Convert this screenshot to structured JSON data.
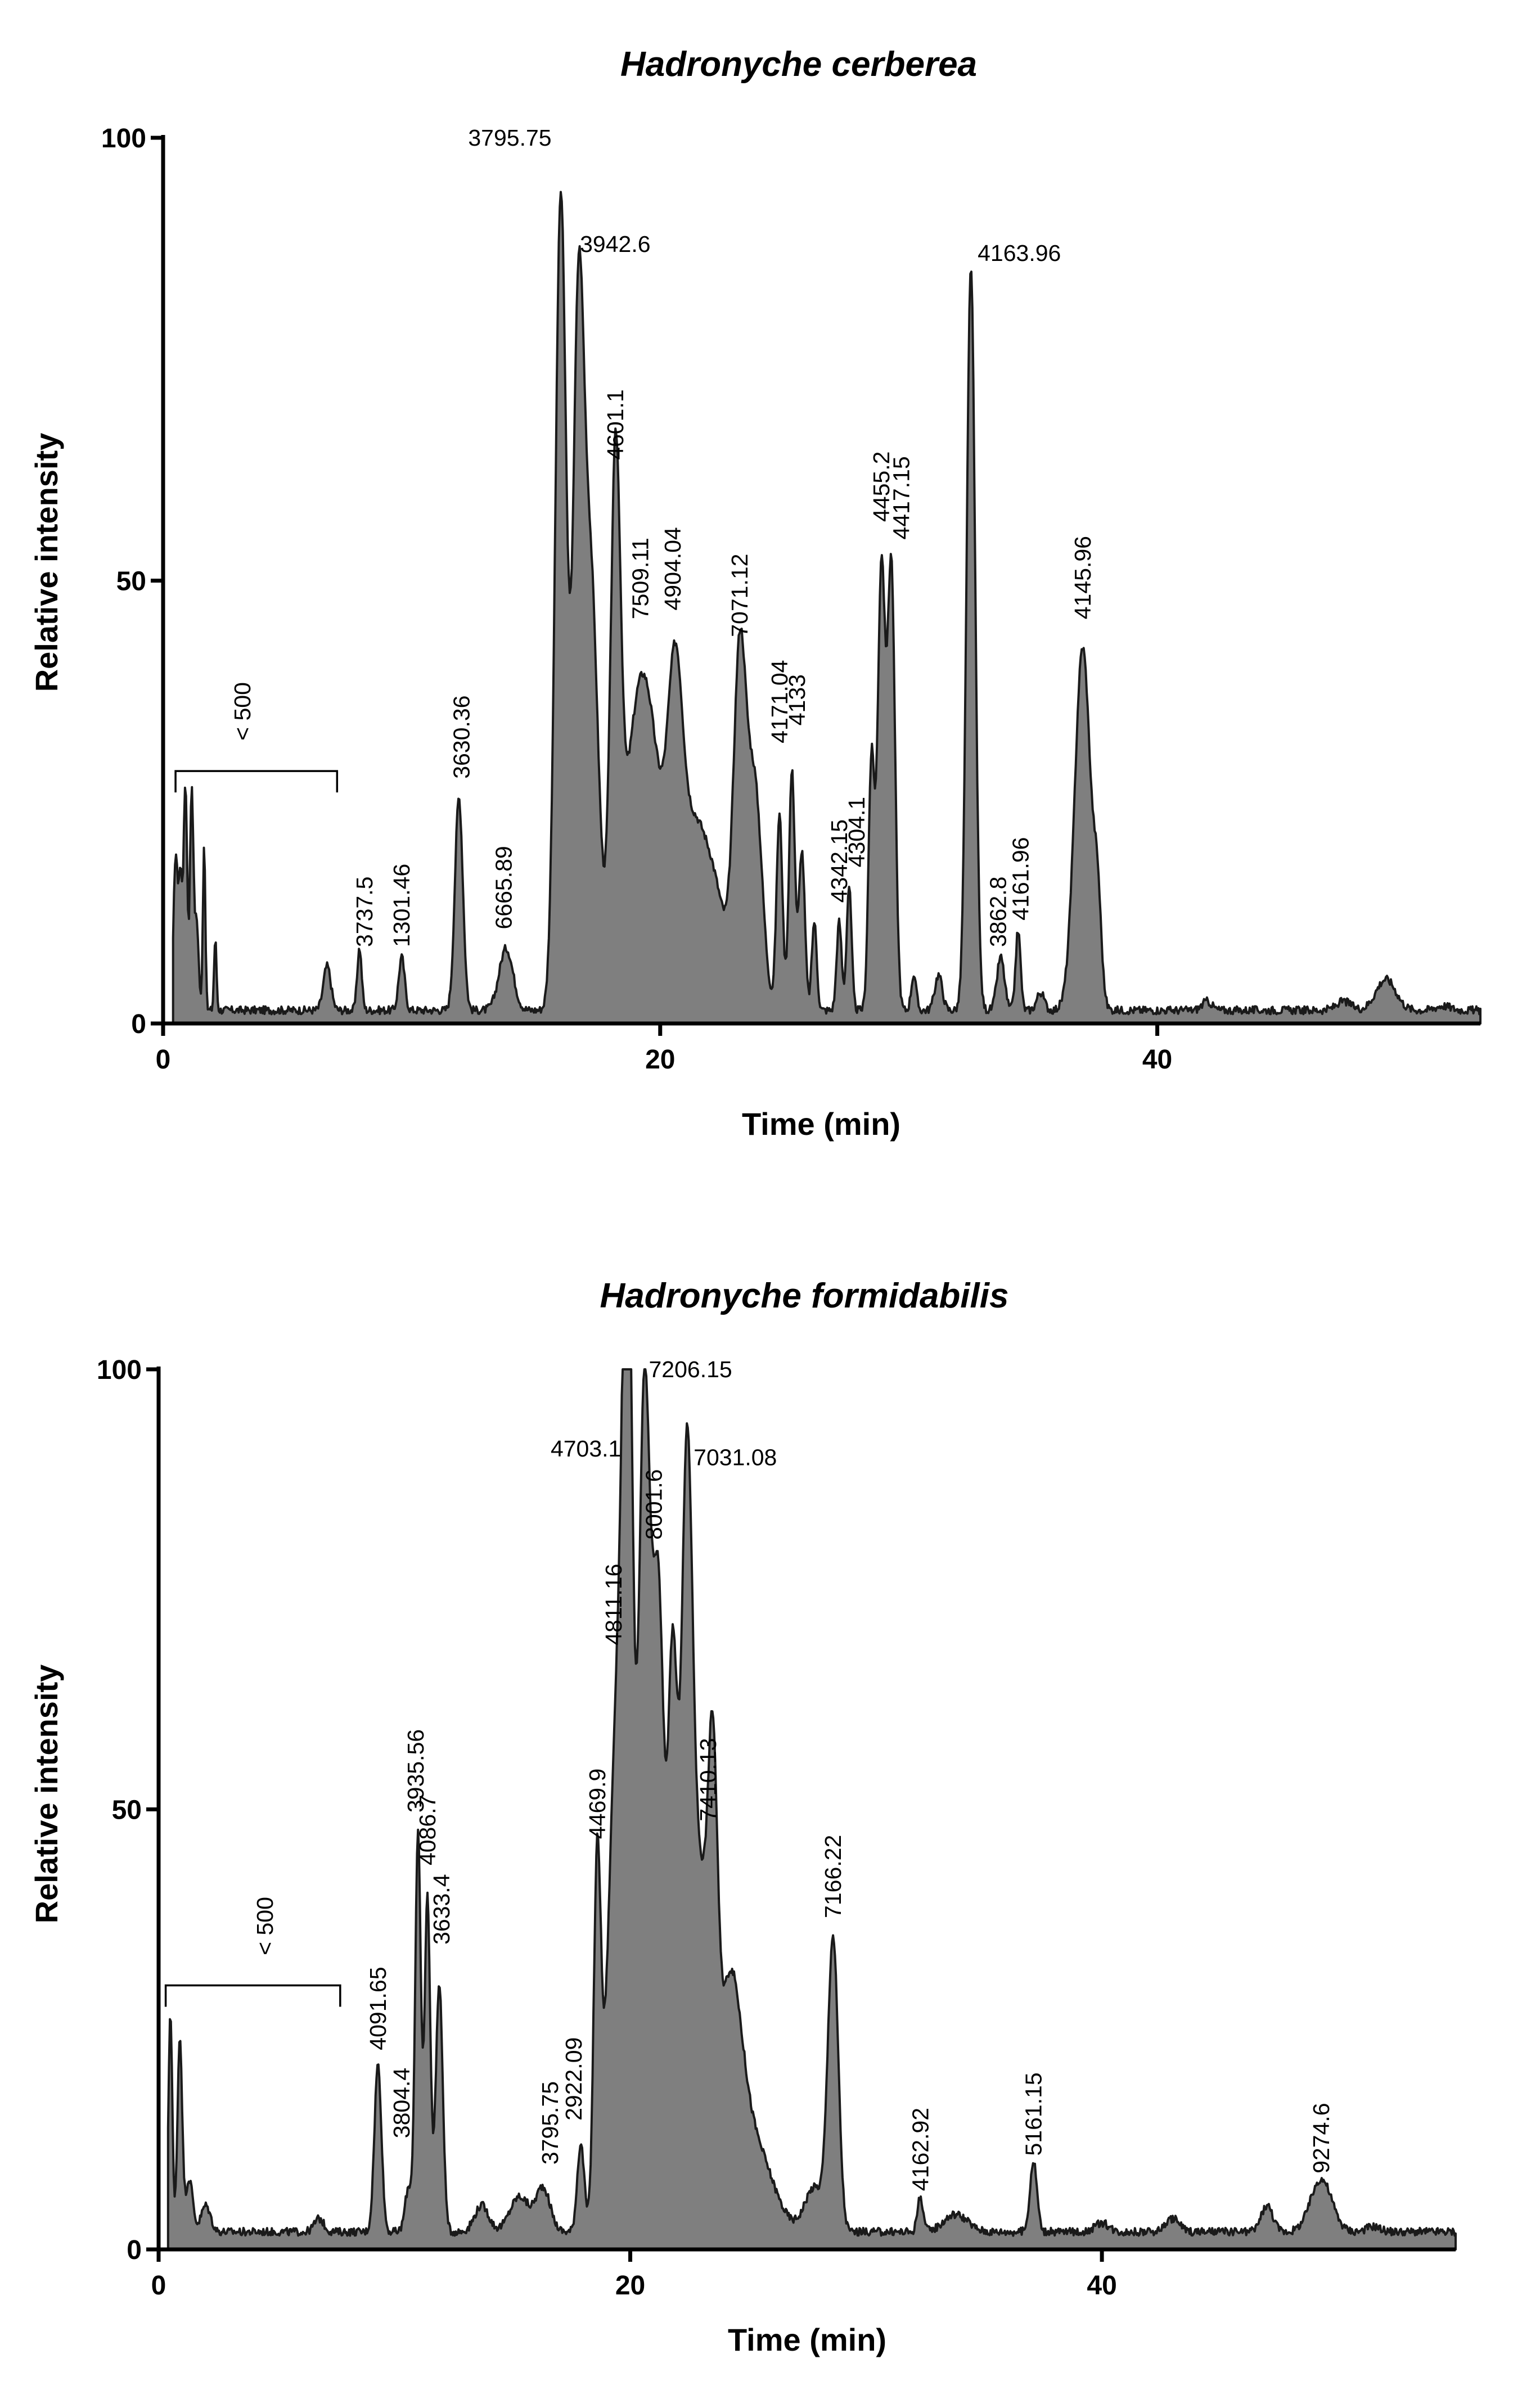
{
  "colors": {
    "fill": "#7f7f7f",
    "line": "#1a1a1a",
    "axis": "#000000"
  },
  "chart_data": [
    {
      "type": "area",
      "title": "Hadronyche cerberea",
      "xlabel": "Time (min)",
      "ylabel": "Relative intensity",
      "xlim": [
        0,
        53
      ],
      "ylim": [
        0,
        100
      ],
      "xticks": [
        0,
        20,
        40
      ],
      "yticks": [
        0,
        50,
        100
      ],
      "bracket": {
        "label": "< 500",
        "x_range": [
          0.5,
          7
        ]
      },
      "baseline": 1.5,
      "peaks": [
        {
          "x": 0.5,
          "y": 17,
          "w": 0.08
        },
        {
          "x": 0.7,
          "y": 15,
          "w": 0.08
        },
        {
          "x": 0.9,
          "y": 25,
          "w": 0.07
        },
        {
          "x": 1.15,
          "y": 25,
          "w": 0.07
        },
        {
          "x": 1.35,
          "y": 10,
          "w": 0.08
        },
        {
          "x": 1.65,
          "y": 19,
          "w": 0.05
        },
        {
          "x": 2.1,
          "y": 8,
          "w": 0.05
        },
        {
          "x": 6.6,
          "y": 5,
          "w": 0.15
        },
        {
          "x": 7.9,
          "y": 7,
          "w": 0.09
        },
        {
          "x": 9.6,
          "y": 6,
          "w": 0.12
        },
        {
          "x": 11.9,
          "y": 24,
          "w": 0.16
        },
        {
          "x": 13.8,
          "y": 7,
          "w": 0.28
        },
        {
          "x": 16.0,
          "y": 92,
          "w": 0.22
        },
        {
          "x": 16.7,
          "y": 72,
          "w": 0.22
        },
        {
          "x": 17.2,
          "y": 48,
          "w": 0.3
        },
        {
          "x": 18.2,
          "y": 54,
          "w": 0.2
        },
        {
          "x": 19.3,
          "y": 38,
          "w": 0.7
        },
        {
          "x": 20.6,
          "y": 28,
          "w": 0.3
        },
        {
          "x": 21.3,
          "y": 18,
          "w": 0.5
        },
        {
          "x": 22.2,
          "y": 12,
          "w": 0.5
        },
        {
          "x": 23.2,
          "y": 38,
          "w": 0.25
        },
        {
          "x": 23.8,
          "y": 25,
          "w": 0.3
        },
        {
          "x": 24.8,
          "y": 22,
          "w": 0.12
        },
        {
          "x": 25.3,
          "y": 27,
          "w": 0.12
        },
        {
          "x": 25.7,
          "y": 18,
          "w": 0.12
        },
        {
          "x": 26.2,
          "y": 10,
          "w": 0.1
        },
        {
          "x": 27.2,
          "y": 10,
          "w": 0.1
        },
        {
          "x": 27.6,
          "y": 14,
          "w": 0.1
        },
        {
          "x": 28.5,
          "y": 28,
          "w": 0.12
        },
        {
          "x": 28.9,
          "y": 50,
          "w": 0.15
        },
        {
          "x": 29.3,
          "y": 50,
          "w": 0.15
        },
        {
          "x": 30.2,
          "y": 4,
          "w": 0.1
        },
        {
          "x": 31.2,
          "y": 4,
          "w": 0.15
        },
        {
          "x": 32.5,
          "y": 84,
          "w": 0.17
        },
        {
          "x": 33.7,
          "y": 6,
          "w": 0.15
        },
        {
          "x": 34.4,
          "y": 9,
          "w": 0.1
        },
        {
          "x": 35.3,
          "y": 2,
          "w": 0.15
        },
        {
          "x": 37.0,
          "y": 41,
          "w": 0.32
        },
        {
          "x": 37.6,
          "y": 10,
          "w": 0.15
        },
        {
          "x": 42.0,
          "y": 1,
          "w": 0.2
        },
        {
          "x": 47.5,
          "y": 1,
          "w": 0.3
        },
        {
          "x": 49.2,
          "y": 3.5,
          "w": 0.4
        },
        {
          "x": 51.5,
          "y": 0.5,
          "w": 0.3
        }
      ],
      "peak_labels": [
        {
          "text": "3795.75",
          "x": 15.9,
          "y": 100
        },
        {
          "text": "3942.6",
          "x": 16.5,
          "y": 88
        },
        {
          "text": "4601.1",
          "x": 18.2,
          "y": 63
        },
        {
          "text": "7509.11",
          "x": 19.2,
          "y": 45
        },
        {
          "text": "4904.04",
          "x": 20.5,
          "y": 46
        },
        {
          "text": "7071.12",
          "x": 23.2,
          "y": 43
        },
        {
          "text": "4171.04",
          "x": 24.8,
          "y": 31
        },
        {
          "text": "4133",
          "x": 25.5,
          "y": 33
        },
        {
          "text": "4342.15",
          "x": 27.2,
          "y": 13
        },
        {
          "text": "4304.1",
          "x": 27.9,
          "y": 17
        },
        {
          "text": "4455.2",
          "x": 28.9,
          "y": 56
        },
        {
          "text": "4417.15",
          "x": 29.7,
          "y": 54
        },
        {
          "text": "4163.96",
          "x": 32.5,
          "y": 87
        },
        {
          "text": "3862.8",
          "x": 33.6,
          "y": 8
        },
        {
          "text": "4161.96",
          "x": 34.5,
          "y": 11
        },
        {
          "text": "4145.96",
          "x": 37.0,
          "y": 45
        },
        {
          "text": "3737.5",
          "x": 8.1,
          "y": 8
        },
        {
          "text": "1301.46",
          "x": 9.6,
          "y": 8
        },
        {
          "text": "3630.36",
          "x": 12.0,
          "y": 27
        },
        {
          "text": "6665.89",
          "x": 13.7,
          "y": 10
        }
      ]
    },
    {
      "type": "area",
      "title": "Hadronyche formidabilis",
      "xlabel": "Time (min)",
      "ylabel": "Relative intensity",
      "xlim": [
        0,
        55
      ],
      "ylim": [
        0,
        100
      ],
      "xticks": [
        0,
        20,
        40
      ],
      "yticks": [
        0,
        50,
        100
      ],
      "bracket": {
        "label": "< 500",
        "x_range": [
          0.3,
          7.7
        ]
      },
      "baseline": 2,
      "peaks": [
        {
          "x": 0.5,
          "y": 25,
          "w": 0.08
        },
        {
          "x": 0.9,
          "y": 22,
          "w": 0.1
        },
        {
          "x": 1.3,
          "y": 6,
          "w": 0.15
        },
        {
          "x": 2.0,
          "y": 3,
          "w": 0.2
        },
        {
          "x": 6.8,
          "y": 1.5,
          "w": 0.2
        },
        {
          "x": 9.3,
          "y": 19,
          "w": 0.15
        },
        {
          "x": 10.6,
          "y": 5,
          "w": 0.15
        },
        {
          "x": 11.0,
          "y": 45,
          "w": 0.12
        },
        {
          "x": 11.4,
          "y": 38,
          "w": 0.12
        },
        {
          "x": 11.9,
          "y": 28,
          "w": 0.15
        },
        {
          "x": 13.7,
          "y": 3,
          "w": 0.3
        },
        {
          "x": 15.3,
          "y": 4,
          "w": 0.4
        },
        {
          "x": 16.3,
          "y": 5,
          "w": 0.3
        },
        {
          "x": 17.9,
          "y": 10,
          "w": 0.15
        },
        {
          "x": 18.6,
          "y": 40,
          "w": 0.15
        },
        {
          "x": 19.5,
          "y": 62,
          "w": 0.4
        },
        {
          "x": 19.9,
          "y": 85,
          "w": 0.2
        },
        {
          "x": 20.6,
          "y": 93,
          "w": 0.25
        },
        {
          "x": 21.2,
          "y": 70,
          "w": 0.25
        },
        {
          "x": 21.8,
          "y": 60,
          "w": 0.2
        },
        {
          "x": 22.4,
          "y": 86,
          "w": 0.25
        },
        {
          "x": 23.0,
          "y": 35,
          "w": 0.3
        },
        {
          "x": 23.5,
          "y": 40,
          "w": 0.2
        },
        {
          "x": 24.2,
          "y": 25,
          "w": 0.5
        },
        {
          "x": 25.2,
          "y": 10,
          "w": 0.8
        },
        {
          "x": 27.8,
          "y": 5,
          "w": 0.4
        },
        {
          "x": 28.6,
          "y": 33,
          "w": 0.22
        },
        {
          "x": 32.3,
          "y": 4,
          "w": 0.12
        },
        {
          "x": 33.8,
          "y": 2,
          "w": 0.5
        },
        {
          "x": 37.1,
          "y": 8,
          "w": 0.15
        },
        {
          "x": 40.0,
          "y": 1,
          "w": 0.3
        },
        {
          "x": 43.0,
          "y": 1.5,
          "w": 0.3
        },
        {
          "x": 47.0,
          "y": 3,
          "w": 0.25
        },
        {
          "x": 49.3,
          "y": 6,
          "w": 0.45
        },
        {
          "x": 51.5,
          "y": 0.6,
          "w": 0.3
        }
      ],
      "peak_labels": [
        {
          "text": "7206.15",
          "x": 20.5,
          "y": 100
        },
        {
          "text": "4703.1",
          "x": 19.9,
          "y": 91
        },
        {
          "text": "7031.08",
          "x": 22.4,
          "y": 90
        },
        {
          "text": "8001.6",
          "x": 21.0,
          "y": 80
        },
        {
          "text": "4811.16",
          "x": 19.3,
          "y": 68
        },
        {
          "text": "4469.9",
          "x": 18.6,
          "y": 46
        },
        {
          "text": "7410.13",
          "x": 23.3,
          "y": 48
        },
        {
          "text": "3935.56",
          "x": 10.9,
          "y": 49
        },
        {
          "text": "4086.7",
          "x": 11.4,
          "y": 43
        },
        {
          "text": "3633.4",
          "x": 12.0,
          "y": 34
        },
        {
          "text": "4091.65",
          "x": 9.3,
          "y": 22
        },
        {
          "text": "3804.4",
          "x": 10.3,
          "y": 12
        },
        {
          "text": "3795.75",
          "x": 16.6,
          "y": 9
        },
        {
          "text": "2922.09",
          "x": 17.6,
          "y": 14
        },
        {
          "text": "7166.22",
          "x": 28.6,
          "y": 37
        },
        {
          "text": "4162.92",
          "x": 32.3,
          "y": 6
        },
        {
          "text": "5161.15",
          "x": 37.1,
          "y": 10
        },
        {
          "text": "9274.6",
          "x": 49.3,
          "y": 8
        }
      ]
    }
  ]
}
